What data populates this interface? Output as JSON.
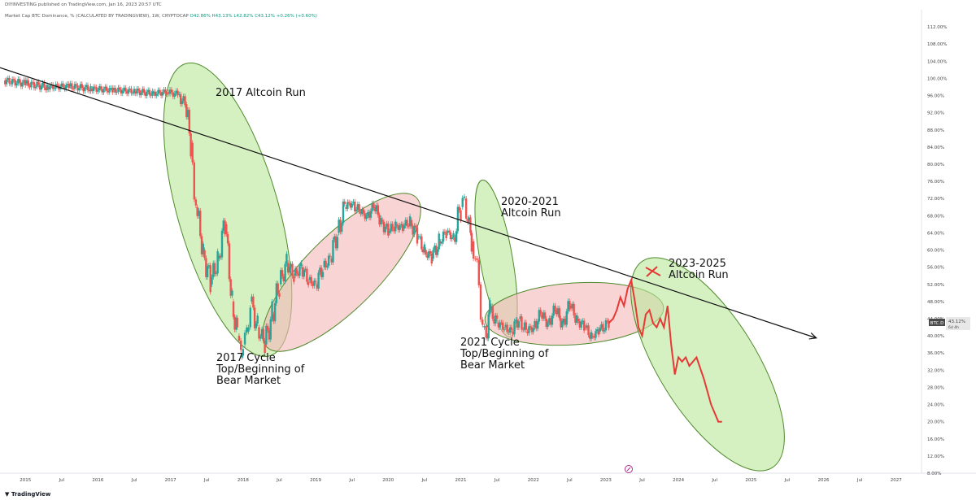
{
  "header": {
    "attribution": "DIYINVESTING published on TradingView.com, Jan 16, 2023 20:57 UTC",
    "legend_title": "Market Cap BTC Dominance, % (CALCULATED BY TRADINGVIEW), 1W, CRYPTOCAP",
    "ohlc": "O42.86% H43.13% L42.82% C43.12% +0.26% (+0.60%)"
  },
  "footer": {
    "logo": "TradingView"
  },
  "price_tag": {
    "symbol": "BTC.D",
    "value": "43.12%",
    "countdown": "6d 4h"
  },
  "colors": {
    "candle_up": "#26a69a",
    "candle_down": "#ef5350",
    "green_zone": "#b9e89a",
    "red_zone": "#f5b7b7",
    "trend_line": "#111111",
    "projection": "#e53935"
  },
  "annotations": {
    "alt2017": "2017 Altcoin Run",
    "top2017_l1": "2017 Cycle",
    "top2017_l2": "Top/Beginning of",
    "top2017_l3": "Bear Market",
    "alt2021_l1": "2020-2021",
    "alt2021_l2": "Altcoin Run",
    "top2021_l1": "2021 Cycle",
    "top2021_l2": "Top/Beginning of",
    "top2021_l3": "Bear Market",
    "alt2023_l1": "2023-2025",
    "alt2023_l2": "Altcoin Run"
  },
  "chart_data": {
    "type": "line",
    "title": "Market Cap BTC Dominance, % (CALCULATED BY TRADINGVIEW), 1W, CRYPTOCAP",
    "xlabel": "",
    "ylabel": "",
    "x_ticks": [
      "2015",
      "Jul",
      "2016",
      "Jul",
      "2017",
      "Jul",
      "2018",
      "Jul",
      "2019",
      "Jul",
      "2020",
      "Jul",
      "2021",
      "Jul",
      "2022",
      "Jul",
      "2023",
      "Jul",
      "2024",
      "Jul",
      "2025",
      "Jul",
      "2026",
      "Jul",
      "2027"
    ],
    "y_ticks": [
      "112.00%",
      "108.00%",
      "104.00%",
      "100.00%",
      "96.00%",
      "92.00%",
      "88.00%",
      "84.00%",
      "80.00%",
      "76.00%",
      "72.00%",
      "68.00%",
      "64.00%",
      "60.00%",
      "56.00%",
      "52.00%",
      "48.00%",
      "44.00%",
      "40.00%",
      "36.00%",
      "32.00%",
      "28.00%",
      "24.00%",
      "20.00%",
      "16.00%",
      "12.00%",
      "8.00%"
    ],
    "ylim": [
      8,
      116
    ],
    "xlim": [
      2014.65,
      2027.35
    ],
    "grid": false,
    "series": [
      {
        "kind": "candlestick_close",
        "x": [
          2014.7,
          2015.0,
          2015.3,
          2015.6,
          2015.9,
          2016.2,
          2016.5,
          2016.75,
          2016.95,
          2017.1,
          2017.2,
          2017.28,
          2017.35,
          2017.45,
          2017.55,
          2017.65,
          2017.75,
          2017.85,
          2017.92,
          2017.97,
          2018.0,
          2018.05,
          2018.1,
          2018.2,
          2018.3,
          2018.4,
          2018.5,
          2018.6,
          2018.7,
          2018.8,
          2018.9,
          2019.0,
          2019.1,
          2019.2,
          2019.3,
          2019.4,
          2019.5,
          2019.6,
          2019.7,
          2019.8,
          2019.9,
          2020.0,
          2020.1,
          2020.2,
          2020.3,
          2020.4,
          2020.5,
          2020.6,
          2020.7,
          2020.8,
          2020.9,
          2021.0,
          2021.05,
          2021.1,
          2021.15,
          2021.2,
          2021.25,
          2021.3,
          2021.35,
          2021.4,
          2021.5,
          2021.6,
          2021.7,
          2021.8,
          2021.9,
          2022.0,
          2022.1,
          2022.2,
          2022.3,
          2022.4,
          2022.5,
          2022.6,
          2022.7,
          2022.8,
          2022.9,
          2023.04
        ],
        "y": [
          99.5,
          98.8,
          98.0,
          98.2,
          97.6,
          97.3,
          97.0,
          96.5,
          96.8,
          96.3,
          94.0,
          85.0,
          70.0,
          60.0,
          52.0,
          58.0,
          66.0,
          48.0,
          40.0,
          35.0,
          38.0,
          41.0,
          48.0,
          42.0,
          38.0,
          45.0,
          52.0,
          57.0,
          54.0,
          56.0,
          53.0,
          52.0,
          56.0,
          58.0,
          64.0,
          70.0,
          71.0,
          69.0,
          68.0,
          70.0,
          67.0,
          64.0,
          66.0,
          65.0,
          67.0,
          63.0,
          60.0,
          58.0,
          62.0,
          64.0,
          63.0,
          70.0,
          72.0,
          67.0,
          62.0,
          58.0,
          52.0,
          42.0,
          40.0,
          46.0,
          43.0,
          42.0,
          41.0,
          44.0,
          41.0,
          42.0,
          45.0,
          43.0,
          46.0,
          43.0,
          47.0,
          44.0,
          42.0,
          40.0,
          41.0,
          43.12
        ]
      },
      {
        "name": "",
        "kind": "projection",
        "x": [
          2023.04,
          2023.1,
          2023.15,
          2023.2,
          2023.25,
          2023.3,
          2023.35,
          2023.4,
          2023.45,
          2023.5,
          2023.55,
          2023.6,
          2023.65,
          2023.7,
          2023.75,
          2023.8,
          2023.85,
          2023.9,
          2023.95,
          2024.0,
          2024.05,
          2024.1,
          2024.15,
          2024.2,
          2024.25,
          2024.35,
          2024.45,
          2024.55,
          2024.6
        ],
        "y": [
          43.0,
          44.0,
          46.0,
          49.0,
          47.0,
          51.0,
          53.0,
          48.0,
          42.0,
          40.0,
          45.0,
          46.0,
          43.0,
          42.0,
          44.0,
          42.0,
          47.0,
          38.0,
          31.0,
          35.0,
          34.0,
          35.0,
          33.0,
          34.0,
          35.0,
          30.0,
          24.0,
          20.0,
          20.0
        ]
      }
    ],
    "trend_line": {
      "x": [
        2014.65,
        2025.9
      ],
      "y": [
        102.5,
        39.5
      ]
    }
  }
}
